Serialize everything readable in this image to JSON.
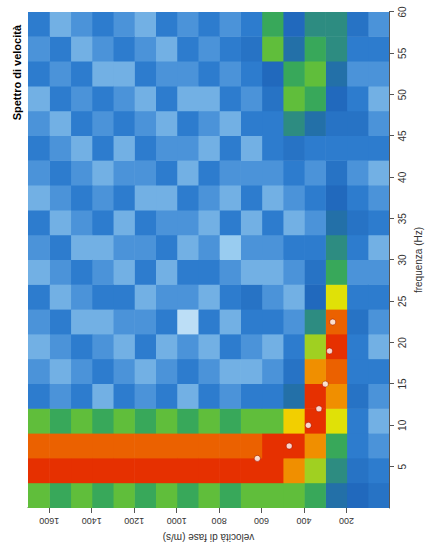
{
  "chart_data": {
    "type": "heatmap",
    "title": "Spettro di velocità",
    "x_label": "frequenza (Hz)",
    "y_label": "velocità di fase (m/s)",
    "xlim": [
      0,
      60
    ],
    "xticks": [
      5,
      10,
      15,
      20,
      25,
      30,
      35,
      40,
      45,
      50,
      55,
      60
    ],
    "ylim": [
      0,
      1700
    ],
    "yticks": [
      200,
      400,
      600,
      800,
      1000,
      1200,
      1400,
      1600
    ],
    "grid": false,
    "heatmap": {
      "x": [
        1.5,
        4.5,
        7.5,
        10.5,
        13.5,
        16.5,
        19.5,
        22.5,
        25.5,
        28.5,
        31.5,
        34.5,
        37.5,
        40.5,
        43.5,
        46.5,
        49.5,
        52.5,
        55.5,
        58.5
      ],
      "y": [
        50,
        150,
        250,
        350,
        450,
        550,
        650,
        750,
        850,
        950,
        1050,
        1150,
        1250,
        1350,
        1450,
        1550,
        1650
      ],
      "values": [
        [
          0.35,
          0.3,
          0.25,
          0.2,
          0.25,
          0.3,
          0.2,
          0.25,
          0.3,
          0.25,
          0.2,
          0.3,
          0.25,
          0.2,
          0.3,
          0.25,
          0.2,
          0.25,
          0.3,
          0.25
        ],
        [
          0.4,
          0.35,
          0.3,
          0.3,
          0.35,
          0.3,
          0.3,
          0.35,
          0.3,
          0.25,
          0.3,
          0.35,
          0.3,
          0.25,
          0.3,
          0.35,
          0.3,
          0.25,
          0.3,
          0.35
        ],
        [
          0.45,
          0.5,
          0.55,
          0.7,
          0.85,
          0.9,
          0.95,
          0.9,
          0.7,
          0.55,
          0.5,
          0.45,
          0.4,
          0.35,
          0.3,
          0.35,
          0.4,
          0.45,
          0.5,
          0.5
        ],
        [
          0.55,
          0.65,
          0.85,
          0.95,
          0.95,
          0.85,
          0.65,
          0.5,
          0.4,
          0.35,
          0.3,
          0.25,
          0.3,
          0.25,
          0.3,
          0.45,
          0.55,
          0.6,
          0.55,
          0.5
        ],
        [
          0.6,
          0.85,
          0.95,
          0.75,
          0.45,
          0.35,
          0.3,
          0.25,
          0.2,
          0.25,
          0.3,
          0.2,
          0.25,
          0.3,
          0.35,
          0.5,
          0.6,
          0.55,
          0.45,
          0.4
        ],
        [
          0.6,
          0.95,
          0.95,
          0.6,
          0.3,
          0.25,
          0.2,
          0.3,
          0.25,
          0.2,
          0.25,
          0.3,
          0.2,
          0.25,
          0.3,
          0.3,
          0.35,
          0.4,
          0.6,
          0.55
        ],
        [
          0.6,
          0.95,
          0.9,
          0.6,
          0.3,
          0.2,
          0.25,
          0.3,
          0.35,
          0.2,
          0.25,
          0.2,
          0.3,
          0.25,
          0.2,
          0.3,
          0.25,
          0.3,
          0.35,
          0.3
        ],
        [
          0.55,
          0.95,
          0.9,
          0.55,
          0.25,
          0.2,
          0.3,
          0.2,
          0.3,
          0.25,
          0.15,
          0.3,
          0.2,
          0.25,
          0.3,
          0.2,
          0.3,
          0.25,
          0.3,
          0.25
        ],
        [
          0.6,
          0.95,
          0.9,
          0.6,
          0.3,
          0.25,
          0.2,
          0.3,
          0.2,
          0.3,
          0.25,
          0.2,
          0.25,
          0.3,
          0.2,
          0.25,
          0.2,
          0.3,
          0.25,
          0.3
        ],
        [
          0.55,
          0.95,
          0.9,
          0.55,
          0.2,
          0.3,
          0.25,
          0.1,
          0.25,
          0.3,
          0.2,
          0.25,
          0.3,
          0.2,
          0.25,
          0.3,
          0.2,
          0.25,
          0.3,
          0.25
        ],
        [
          0.6,
          0.95,
          0.9,
          0.6,
          0.3,
          0.25,
          0.2,
          0.3,
          0.25,
          0.2,
          0.3,
          0.25,
          0.2,
          0.3,
          0.25,
          0.2,
          0.3,
          0.25,
          0.2,
          0.3
        ],
        [
          0.55,
          0.95,
          0.9,
          0.55,
          0.25,
          0.2,
          0.3,
          0.25,
          0.2,
          0.3,
          0.25,
          0.3,
          0.2,
          0.25,
          0.3,
          0.25,
          0.2,
          0.3,
          0.25,
          0.2
        ],
        [
          0.6,
          0.95,
          0.9,
          0.6,
          0.3,
          0.25,
          0.2,
          0.25,
          0.3,
          0.2,
          0.25,
          0.2,
          0.3,
          0.25,
          0.2,
          0.3,
          0.25,
          0.2,
          0.3,
          0.25
        ],
        [
          0.55,
          0.95,
          0.9,
          0.55,
          0.2,
          0.3,
          0.25,
          0.2,
          0.3,
          0.25,
          0.2,
          0.3,
          0.25,
          0.2,
          0.3,
          0.25,
          0.3,
          0.2,
          0.25,
          0.3
        ],
        [
          0.6,
          0.95,
          0.9,
          0.6,
          0.3,
          0.25,
          0.3,
          0.2,
          0.25,
          0.3,
          0.2,
          0.25,
          0.3,
          0.25,
          0.2,
          0.3,
          0.25,
          0.3,
          0.2,
          0.25
        ],
        [
          0.55,
          0.95,
          0.9,
          0.55,
          0.25,
          0.2,
          0.25,
          0.3,
          0.2,
          0.25,
          0.3,
          0.2,
          0.25,
          0.3,
          0.25,
          0.2,
          0.3,
          0.25,
          0.3,
          0.2
        ],
        [
          0.6,
          0.95,
          0.9,
          0.6,
          0.3,
          0.25,
          0.2,
          0.25,
          0.3,
          0.2,
          0.25,
          0.3,
          0.2,
          0.25,
          0.3,
          0.25,
          0.2,
          0.3,
          0.25,
          0.3
        ]
      ],
      "zlim": [
        0,
        1
      ]
    },
    "points": {
      "x": [
        6,
        7.5,
        10,
        12,
        15,
        19,
        22.5
      ],
      "y": [
        620,
        470,
        380,
        330,
        300,
        280,
        265
      ],
      "color": "#ffffff",
      "marker": "circle"
    }
  }
}
